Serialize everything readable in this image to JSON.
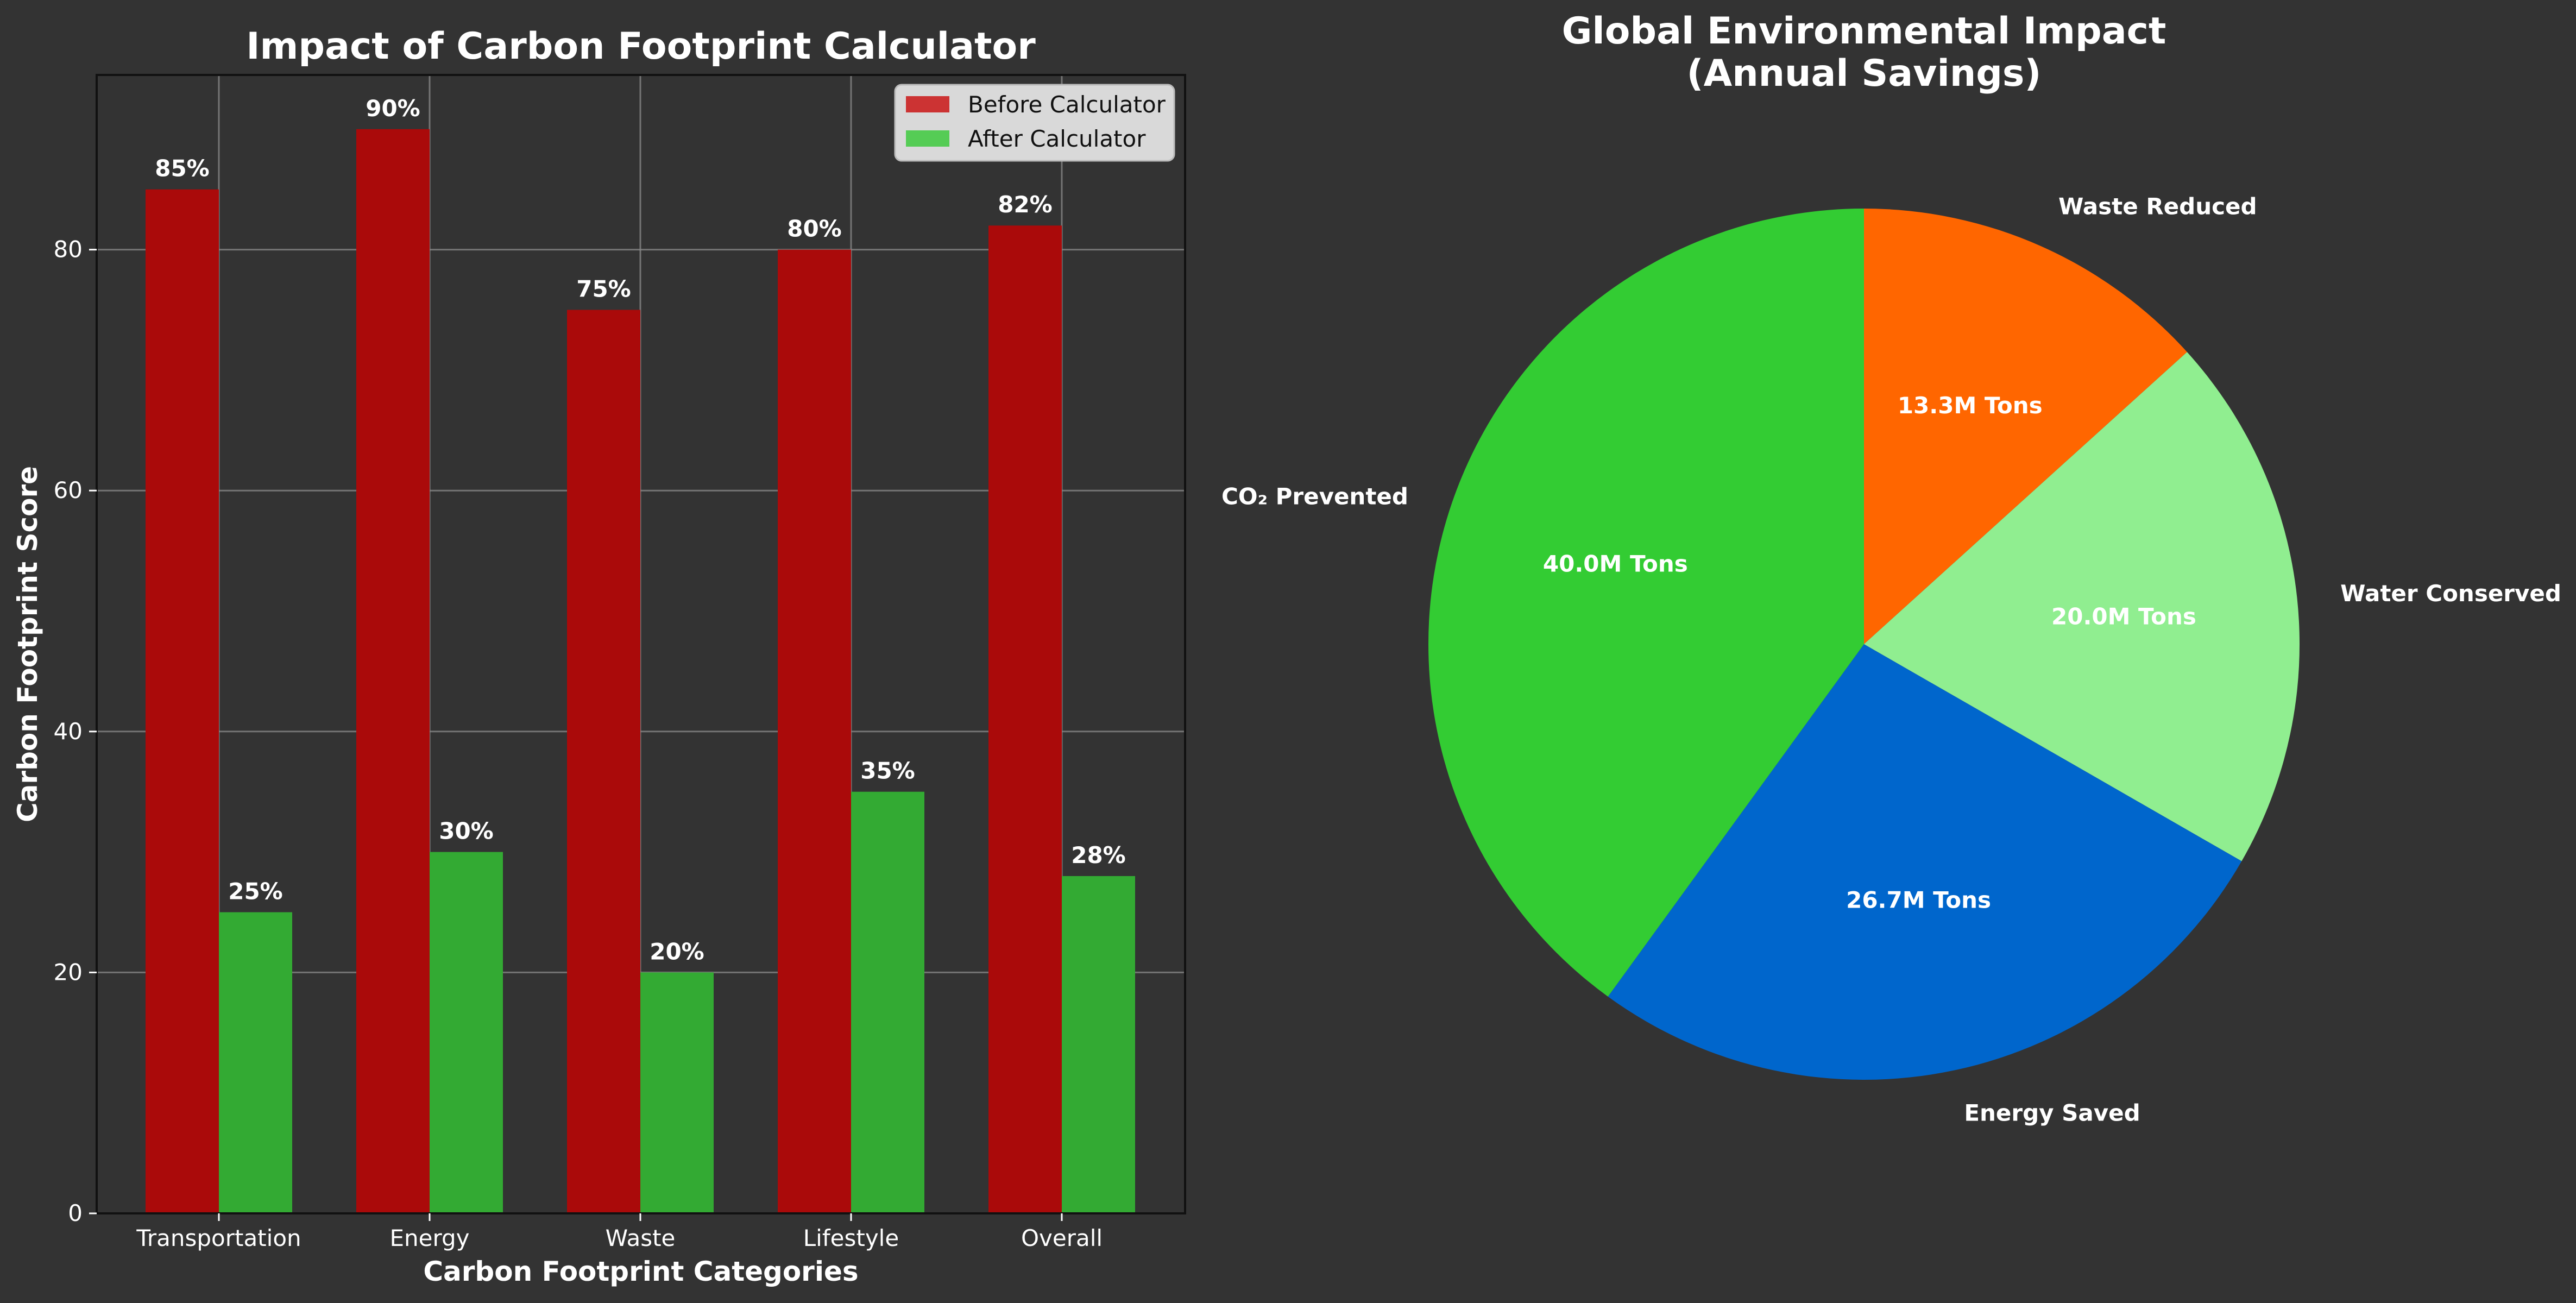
{
  "chart_data": [
    {
      "type": "bar",
      "title": "Impact of Carbon Footprint Calculator",
      "xlabel": "Carbon Footprint Categories",
      "ylabel": "Carbon Footprint Score",
      "categories": [
        "Transportation",
        "Energy",
        "Waste",
        "Lifestyle",
        "Overall"
      ],
      "series": [
        {
          "name": "Before Calculator",
          "values": [
            85,
            90,
            75,
            80,
            82
          ],
          "color": "#aa0a0a",
          "legend_color": "#cc3333"
        },
        {
          "name": "After Calculator",
          "values": [
            25,
            30,
            20,
            35,
            28
          ],
          "color": "#33aa33",
          "legend_color": "#55cc55"
        }
      ],
      "value_suffix": "%",
      "ylim": [
        0,
        94.5
      ],
      "yticks": [
        0,
        20,
        40,
        60,
        80
      ],
      "grid": true,
      "legend_position": "top-right"
    },
    {
      "type": "pie",
      "title": "Global Environmental Impact\n(Annual Savings)",
      "slices": [
        {
          "label": "Waste Reduced",
          "value": 13.3,
          "display": "13.3M Tons",
          "color": "#ff6600"
        },
        {
          "label": "Water Conserved",
          "value": 20.0,
          "display": "20.0M Tons",
          "color": "#90ee90"
        },
        {
          "label": "Energy Saved",
          "value": 26.7,
          "display": "26.7M Tons",
          "color": "#0066cc"
        },
        {
          "label": "CO₂ Prevented",
          "value": 40.0,
          "display": "40.0M Tons",
          "color": "#33cc33"
        }
      ],
      "start_angle_deg": 90,
      "direction": "clockwise"
    }
  ]
}
